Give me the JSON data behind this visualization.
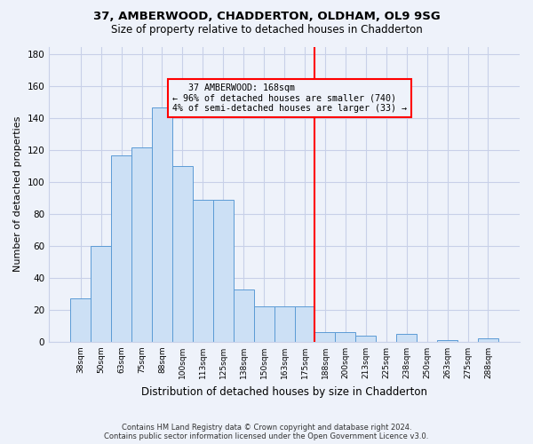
{
  "title1": "37, AMBERWOOD, CHADDERTON, OLDHAM, OL9 9SG",
  "title2": "Size of property relative to detached houses in Chadderton",
  "xlabel": "Distribution of detached houses by size in Chadderton",
  "ylabel": "Number of detached properties",
  "categories": [
    "38sqm",
    "50sqm",
    "63sqm",
    "75sqm",
    "88sqm",
    "100sqm",
    "113sqm",
    "125sqm",
    "138sqm",
    "150sqm",
    "163sqm",
    "175sqm",
    "188sqm",
    "200sqm",
    "213sqm",
    "225sqm",
    "238sqm",
    "250sqm",
    "263sqm",
    "275sqm",
    "288sqm"
  ],
  "values": [
    27,
    60,
    117,
    122,
    147,
    110,
    89,
    89,
    33,
    22,
    22,
    22,
    6,
    6,
    4,
    0,
    5,
    0,
    1,
    0,
    2
  ],
  "bar_color": "#cce0f5",
  "bar_edge_color": "#5b9bd5",
  "ylim": [
    0,
    185
  ],
  "yticks": [
    0,
    20,
    40,
    60,
    80,
    100,
    120,
    140,
    160,
    180
  ],
  "property_label": "37 AMBERWOOD: 168sqm",
  "pct_smaller": 96,
  "n_smaller": 740,
  "pct_larger": 4,
  "n_larger": 33,
  "vline_x_index": 11.5,
  "footer": "Contains HM Land Registry data © Crown copyright and database right 2024.\nContains public sector information licensed under the Open Government Licence v3.0.",
  "background_color": "#eef2fa",
  "grid_color": "#c8d0e8"
}
